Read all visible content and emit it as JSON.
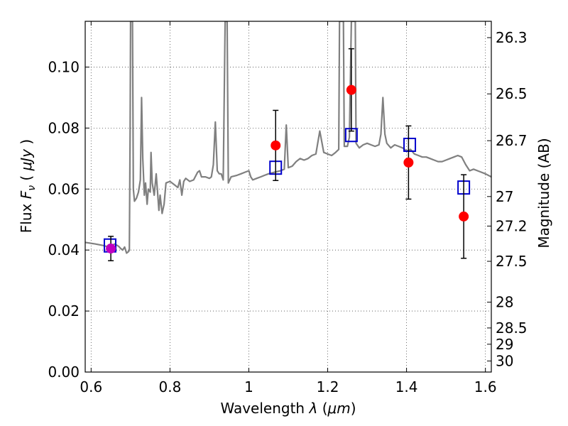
{
  "chart_data": {
    "type": "scatter",
    "title": "",
    "xlabel": "Wavelength",
    "xlabel_symbol": "λ",
    "xlabel_unit_open": "(",
    "xlabel_unit": "μm",
    "xlabel_unit_close": ")",
    "ylabel": "Flux",
    "ylabel_symbol": "F",
    "ylabel_subscript": "ν",
    "ylabel_unit_open": "(",
    "ylabel_unit": "μJy",
    "ylabel_unit_close": ")",
    "y2label": "Magnitude (AB)",
    "xlim": [
      0.585,
      1.615
    ],
    "ylim": [
      0.0,
      0.115
    ],
    "grid": true,
    "x_ticks": [
      0.6,
      0.8,
      1.0,
      1.2,
      1.4,
      1.6
    ],
    "x_tick_labels": [
      "0.6",
      "0.8",
      "1",
      "1.2",
      "1.4",
      "1.6"
    ],
    "y_ticks": [
      0.0,
      0.02,
      0.04,
      0.06,
      0.08,
      0.1
    ],
    "y_tick_labels": [
      "0.00",
      "0.02",
      "0.04",
      "0.06",
      "0.08",
      "0.10"
    ],
    "y2_ticks": [
      {
        "mag": 26.3,
        "label": "26.3"
      },
      {
        "mag": 26.5,
        "label": "26.5"
      },
      {
        "mag": 26.7,
        "label": "26.7"
      },
      {
        "mag": 27.0,
        "label": "27"
      },
      {
        "mag": 27.2,
        "label": "27.2"
      },
      {
        "mag": 27.5,
        "label": "27.5"
      },
      {
        "mag": 28.0,
        "label": "28"
      },
      {
        "mag": 28.5,
        "label": "28.5"
      },
      {
        "mag": 29.0,
        "label": "29"
      },
      {
        "mag": 30.0,
        "label": "30"
      }
    ],
    "series": [
      {
        "name": "model SED",
        "kind": "line",
        "color": "#808080",
        "points": [
          [
            0.585,
            0.0425
          ],
          [
            0.61,
            0.042
          ],
          [
            0.63,
            0.0415
          ],
          [
            0.645,
            0.041
          ],
          [
            0.66,
            0.042
          ],
          [
            0.67,
            0.0412
          ],
          [
            0.675,
            0.0405
          ],
          [
            0.68,
            0.04
          ],
          [
            0.685,
            0.041
          ],
          [
            0.69,
            0.039
          ],
          [
            0.695,
            0.0395
          ],
          [
            0.697,
            0.04
          ],
          [
            0.699,
            0.08
          ],
          [
            0.7,
            0.115
          ],
          [
            0.705,
            0.115
          ],
          [
            0.707,
            0.06
          ],
          [
            0.71,
            0.056
          ],
          [
            0.715,
            0.057
          ],
          [
            0.72,
            0.059
          ],
          [
            0.725,
            0.063
          ],
          [
            0.728,
            0.09
          ],
          [
            0.731,
            0.07
          ],
          [
            0.735,
            0.058
          ],
          [
            0.738,
            0.062
          ],
          [
            0.742,
            0.055
          ],
          [
            0.745,
            0.06
          ],
          [
            0.75,
            0.059
          ],
          [
            0.752,
            0.072
          ],
          [
            0.755,
            0.062
          ],
          [
            0.76,
            0.058
          ],
          [
            0.765,
            0.065
          ],
          [
            0.768,
            0.06
          ],
          [
            0.772,
            0.053
          ],
          [
            0.775,
            0.058
          ],
          [
            0.78,
            0.052
          ],
          [
            0.785,
            0.055
          ],
          [
            0.79,
            0.062
          ],
          [
            0.8,
            0.0625
          ],
          [
            0.81,
            0.0615
          ],
          [
            0.82,
            0.0605
          ],
          [
            0.825,
            0.063
          ],
          [
            0.83,
            0.058
          ],
          [
            0.835,
            0.0625
          ],
          [
            0.84,
            0.0635
          ],
          [
            0.85,
            0.0625
          ],
          [
            0.86,
            0.063
          ],
          [
            0.87,
            0.0655
          ],
          [
            0.875,
            0.066
          ],
          [
            0.88,
            0.064
          ],
          [
            0.89,
            0.064
          ],
          [
            0.9,
            0.0635
          ],
          [
            0.905,
            0.064
          ],
          [
            0.91,
            0.068
          ],
          [
            0.915,
            0.082
          ],
          [
            0.92,
            0.066
          ],
          [
            0.925,
            0.065
          ],
          [
            0.93,
            0.065
          ],
          [
            0.935,
            0.063
          ],
          [
            0.94,
            0.115
          ],
          [
            0.945,
            0.115
          ],
          [
            0.948,
            0.062
          ],
          [
            0.955,
            0.064
          ],
          [
            0.97,
            0.0645
          ],
          [
            0.98,
            0.065
          ],
          [
            0.99,
            0.0655
          ],
          [
            1.0,
            0.066
          ],
          [
            1.005,
            0.064
          ],
          [
            1.01,
            0.063
          ],
          [
            1.02,
            0.0635
          ],
          [
            1.03,
            0.064
          ],
          [
            1.04,
            0.0645
          ],
          [
            1.05,
            0.065
          ],
          [
            1.065,
            0.0655
          ],
          [
            1.08,
            0.066
          ],
          [
            1.09,
            0.0665
          ],
          [
            1.095,
            0.081
          ],
          [
            1.1,
            0.067
          ],
          [
            1.11,
            0.0675
          ],
          [
            1.12,
            0.069
          ],
          [
            1.13,
            0.07
          ],
          [
            1.14,
            0.0695
          ],
          [
            1.15,
            0.07
          ],
          [
            1.16,
            0.071
          ],
          [
            1.17,
            0.0715
          ],
          [
            1.18,
            0.079
          ],
          [
            1.19,
            0.072
          ],
          [
            1.2,
            0.0715
          ],
          [
            1.21,
            0.071
          ],
          [
            1.22,
            0.072
          ],
          [
            1.228,
            0.073
          ],
          [
            1.23,
            0.115
          ],
          [
            1.24,
            0.115
          ],
          [
            1.242,
            0.074
          ],
          [
            1.25,
            0.074
          ],
          [
            1.255,
            0.077
          ],
          [
            1.26,
            0.115
          ],
          [
            1.27,
            0.115
          ],
          [
            1.272,
            0.075
          ],
          [
            1.28,
            0.0735
          ],
          [
            1.29,
            0.0745
          ],
          [
            1.3,
            0.075
          ],
          [
            1.31,
            0.0745
          ],
          [
            1.32,
            0.074
          ],
          [
            1.33,
            0.0745
          ],
          [
            1.335,
            0.078
          ],
          [
            1.34,
            0.09
          ],
          [
            1.345,
            0.078
          ],
          [
            1.35,
            0.075
          ],
          [
            1.36,
            0.0735
          ],
          [
            1.37,
            0.0745
          ],
          [
            1.38,
            0.074
          ],
          [
            1.39,
            0.0735
          ],
          [
            1.4,
            0.0725
          ],
          [
            1.41,
            0.073
          ],
          [
            1.42,
            0.0715
          ],
          [
            1.43,
            0.071
          ],
          [
            1.44,
            0.0705
          ],
          [
            1.45,
            0.0705
          ],
          [
            1.46,
            0.07
          ],
          [
            1.47,
            0.0695
          ],
          [
            1.48,
            0.069
          ],
          [
            1.49,
            0.069
          ],
          [
            1.5,
            0.0695
          ],
          [
            1.51,
            0.07
          ],
          [
            1.52,
            0.0705
          ],
          [
            1.53,
            0.071
          ],
          [
            1.54,
            0.0705
          ],
          [
            1.55,
            0.068
          ],
          [
            1.56,
            0.066
          ],
          [
            1.57,
            0.0665
          ],
          [
            1.58,
            0.066
          ],
          [
            1.59,
            0.0655
          ],
          [
            1.6,
            0.065
          ],
          [
            1.615,
            0.064
          ]
        ]
      },
      {
        "name": "model band flux",
        "kind": "marker",
        "marker": "open-square",
        "color": "#0000cc",
        "points": [
          [
            0.648,
            0.0415
          ],
          [
            1.068,
            0.067
          ],
          [
            1.26,
            0.0777
          ],
          [
            1.408,
            0.0745
          ],
          [
            1.545,
            0.0605
          ]
        ]
      },
      {
        "name": "observed flux",
        "kind": "marker",
        "marker": "filled-circle",
        "color": "#ff0000",
        "points": [
          {
            "x": 0.65,
            "y": 0.0405,
            "err": 0.004,
            "color": "#c000c0"
          },
          {
            "x": 1.068,
            "y": 0.0743,
            "err": 0.0115
          },
          {
            "x": 1.26,
            "y": 0.0925,
            "err": 0.0135
          },
          {
            "x": 1.405,
            "y": 0.0687,
            "err": 0.012
          },
          {
            "x": 1.545,
            "y": 0.051,
            "err": 0.0137
          }
        ]
      }
    ]
  }
}
